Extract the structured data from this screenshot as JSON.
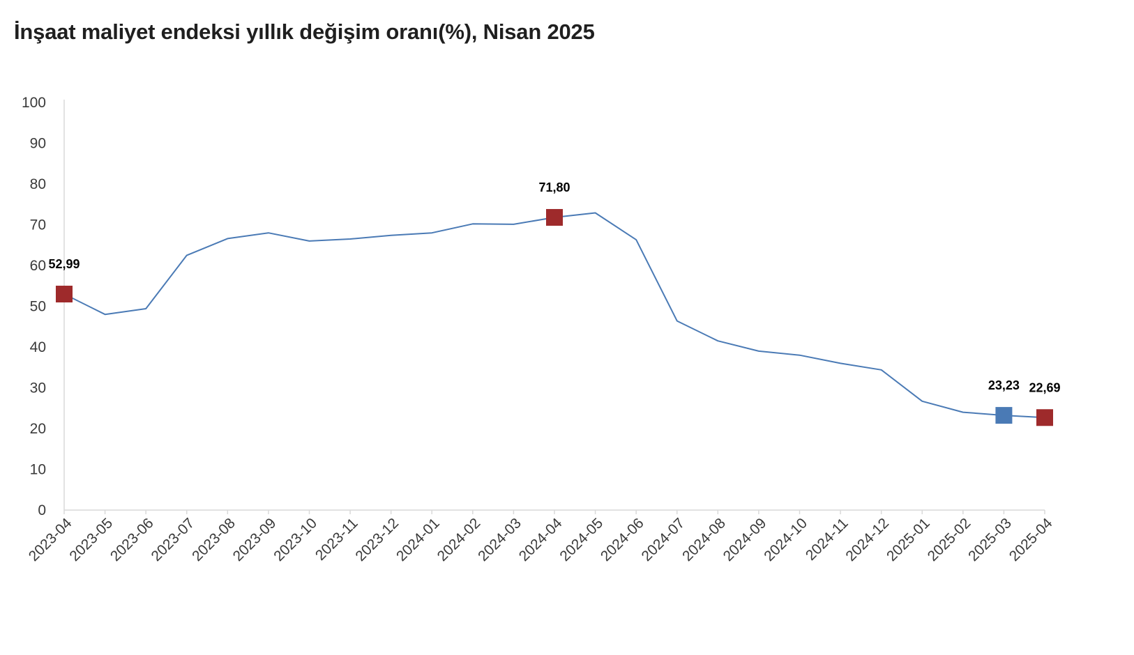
{
  "chart_data": {
    "type": "line",
    "title": "İnşaat maliyet endeksi yıllık değişim oranı(%), Nisan 2025",
    "xlabel": "",
    "ylabel": "",
    "ylim": [
      0,
      100
    ],
    "yticks": [
      "0",
      "10",
      "20",
      "30",
      "40",
      "50",
      "60",
      "70",
      "80",
      "90",
      "100"
    ],
    "grid": false,
    "legend": "none",
    "categories": [
      "2023-04",
      "2023-05",
      "2023-06",
      "2023-07",
      "2023-08",
      "2023-09",
      "2023-10",
      "2023-11",
      "2023-12",
      "2024-01",
      "2024-02",
      "2024-03",
      "2024-04",
      "2024-05",
      "2024-06",
      "2024-07",
      "2024-08",
      "2024-09",
      "2024-10",
      "2024-11",
      "2024-12",
      "2025-01",
      "2025-02",
      "2025-03",
      "2025-04"
    ],
    "series": [
      {
        "values": [
          52.99,
          48.0,
          49.4,
          62.5,
          66.6,
          68.0,
          66.0,
          66.5,
          67.4,
          68.0,
          70.2,
          70.1,
          71.8,
          72.9,
          66.3,
          46.4,
          41.5,
          39.0,
          38.0,
          36.0,
          34.4,
          26.7,
          24.0,
          23.23,
          22.69
        ],
        "color": "#4a7ab5"
      }
    ],
    "highlighted_points": [
      {
        "category": "2023-04",
        "value": 52.99,
        "label": "52,99",
        "color": "#9e2a2b"
      },
      {
        "category": "2024-04",
        "value": 71.8,
        "label": "71,80",
        "color": "#9e2a2b"
      },
      {
        "category": "2025-03",
        "value": 23.23,
        "label": "23,23",
        "color": "#4a7ab5"
      },
      {
        "category": "2025-04",
        "value": 22.69,
        "label": "22,69",
        "color": "#9e2a2b"
      }
    ],
    "axis_color": "#d9d9d9"
  }
}
